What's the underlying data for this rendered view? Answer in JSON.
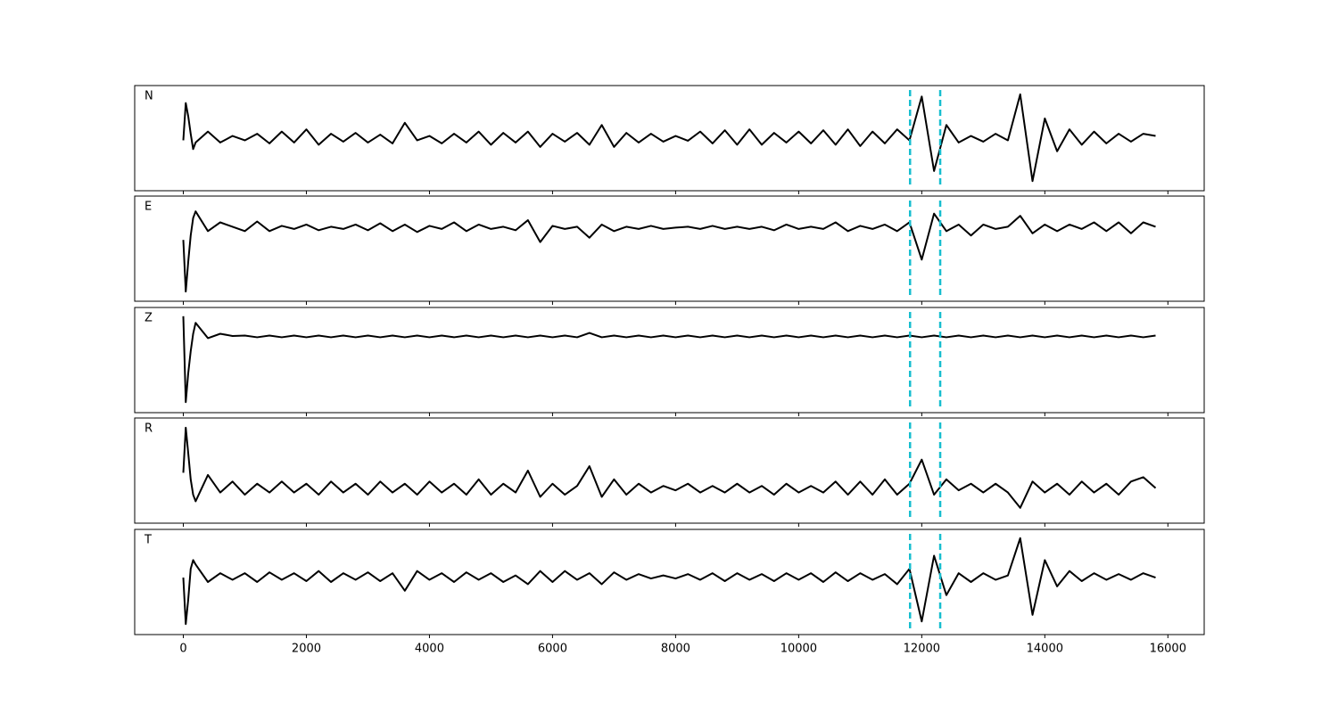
{
  "chart_data": {
    "type": "line",
    "color": "#000000",
    "x": [
      0,
      40,
      80,
      120,
      160,
      200,
      400,
      600,
      800,
      1000,
      1200,
      1400,
      1600,
      1800,
      2000,
      2200,
      2400,
      2600,
      2800,
      3000,
      3200,
      3400,
      3600,
      3800,
      4000,
      4200,
      4400,
      4600,
      4800,
      5000,
      5200,
      5400,
      5600,
      5800,
      6000,
      6200,
      6400,
      6600,
      6800,
      7000,
      7200,
      7400,
      7600,
      7800,
      8000,
      8200,
      8400,
      8600,
      8800,
      9000,
      9200,
      9400,
      9600,
      9800,
      10000,
      10200,
      10400,
      10600,
      10800,
      11000,
      11200,
      11400,
      11600,
      11800,
      12000,
      12200,
      12400,
      12600,
      12800,
      13000,
      13200,
      13400,
      13600,
      13800,
      14000,
      14200,
      14400,
      14600,
      14800,
      15000,
      15200,
      15400,
      15600,
      15800
    ],
    "series": [
      {
        "name": "N",
        "ylim": [
          -1.2,
          1.2
        ],
        "values": [
          -0.05,
          0.8,
          0.5,
          0.1,
          -0.25,
          -0.1,
          0.15,
          -0.1,
          0.05,
          -0.05,
          0.1,
          -0.12,
          0.15,
          -0.1,
          0.2,
          -0.15,
          0.1,
          -0.08,
          0.12,
          -0.1,
          0.08,
          -0.12,
          0.35,
          -0.05,
          0.05,
          -0.12,
          0.1,
          -0.1,
          0.15,
          -0.15,
          0.12,
          -0.1,
          0.15,
          -0.2,
          0.1,
          -0.08,
          0.12,
          -0.15,
          0.3,
          -0.2,
          0.12,
          -0.1,
          0.1,
          -0.08,
          0.05,
          -0.06,
          0.15,
          -0.12,
          0.18,
          -0.15,
          0.2,
          -0.15,
          0.12,
          -0.1,
          0.15,
          -0.12,
          0.18,
          -0.15,
          0.2,
          -0.18,
          0.15,
          -0.12,
          0.2,
          -0.05,
          0.95,
          -0.75,
          0.3,
          -0.1,
          0.05,
          -0.08,
          0.1,
          -0.05,
          1.0,
          -0.98,
          0.45,
          -0.3,
          0.2,
          -0.15,
          0.15,
          -0.12,
          0.1,
          -0.08,
          0.1,
          0.05
        ]
      },
      {
        "name": "E",
        "ylim": [
          -1.2,
          1.2
        ],
        "values": [
          0.2,
          -0.98,
          -0.3,
          0.3,
          0.7,
          0.85,
          0.4,
          0.6,
          0.5,
          0.4,
          0.62,
          0.4,
          0.52,
          0.45,
          0.55,
          0.42,
          0.5,
          0.45,
          0.55,
          0.42,
          0.58,
          0.4,
          0.55,
          0.38,
          0.52,
          0.45,
          0.6,
          0.4,
          0.55,
          0.45,
          0.5,
          0.42,
          0.65,
          0.15,
          0.52,
          0.45,
          0.5,
          0.25,
          0.55,
          0.4,
          0.5,
          0.45,
          0.52,
          0.45,
          0.48,
          0.5,
          0.45,
          0.52,
          0.45,
          0.5,
          0.45,
          0.5,
          0.42,
          0.55,
          0.45,
          0.5,
          0.45,
          0.6,
          0.4,
          0.52,
          0.45,
          0.55,
          0.4,
          0.6,
          -0.25,
          0.8,
          0.4,
          0.55,
          0.3,
          0.55,
          0.45,
          0.5,
          0.75,
          0.35,
          0.55,
          0.4,
          0.55,
          0.45,
          0.6,
          0.4,
          0.6,
          0.35,
          0.6,
          0.5
        ]
      },
      {
        "name": "Z",
        "ylim": [
          -1.2,
          1.2
        ],
        "values": [
          1.0,
          -0.96,
          -0.3,
          0.2,
          0.6,
          0.85,
          0.5,
          0.6,
          0.55,
          0.56,
          0.52,
          0.56,
          0.52,
          0.56,
          0.52,
          0.56,
          0.52,
          0.56,
          0.52,
          0.56,
          0.52,
          0.56,
          0.52,
          0.56,
          0.52,
          0.56,
          0.52,
          0.56,
          0.52,
          0.56,
          0.52,
          0.56,
          0.52,
          0.56,
          0.52,
          0.56,
          0.52,
          0.62,
          0.52,
          0.56,
          0.52,
          0.56,
          0.52,
          0.56,
          0.52,
          0.56,
          0.52,
          0.56,
          0.52,
          0.56,
          0.52,
          0.56,
          0.52,
          0.56,
          0.52,
          0.56,
          0.52,
          0.56,
          0.52,
          0.56,
          0.52,
          0.56,
          0.52,
          0.56,
          0.52,
          0.56,
          0.52,
          0.56,
          0.52,
          0.56,
          0.52,
          0.56,
          0.52,
          0.56,
          0.52,
          0.56,
          0.52,
          0.56,
          0.52,
          0.56,
          0.52,
          0.56,
          0.52,
          0.56
        ]
      },
      {
        "name": "R",
        "ylim": [
          -1.2,
          1.2
        ],
        "values": [
          -0.05,
          0.98,
          0.4,
          -0.2,
          -0.55,
          -0.7,
          -0.1,
          -0.5,
          -0.25,
          -0.55,
          -0.3,
          -0.5,
          -0.25,
          -0.5,
          -0.3,
          -0.55,
          -0.25,
          -0.5,
          -0.3,
          -0.55,
          -0.25,
          -0.5,
          -0.3,
          -0.55,
          -0.25,
          -0.5,
          -0.3,
          -0.55,
          -0.2,
          -0.55,
          -0.3,
          -0.5,
          0.0,
          -0.6,
          -0.3,
          -0.55,
          -0.35,
          0.1,
          -0.6,
          -0.2,
          -0.55,
          -0.3,
          -0.5,
          -0.35,
          -0.45,
          -0.3,
          -0.5,
          -0.35,
          -0.5,
          -0.3,
          -0.5,
          -0.35,
          -0.55,
          -0.3,
          -0.5,
          -0.35,
          -0.5,
          -0.25,
          -0.55,
          -0.25,
          -0.55,
          -0.2,
          -0.55,
          -0.3,
          0.25,
          -0.55,
          -0.2,
          -0.45,
          -0.3,
          -0.5,
          -0.3,
          -0.5,
          -0.85,
          -0.25,
          -0.5,
          -0.3,
          -0.55,
          -0.25,
          -0.5,
          -0.3,
          -0.55,
          -0.25,
          -0.15,
          -0.4
        ]
      },
      {
        "name": "T",
        "ylim": [
          -1.2,
          1.2
        ],
        "values": [
          0.1,
          -0.96,
          -0.4,
          0.3,
          0.5,
          0.4,
          0.0,
          0.2,
          0.05,
          0.2,
          0.0,
          0.22,
          0.05,
          0.2,
          0.02,
          0.25,
          0.0,
          0.2,
          0.05,
          0.22,
          0.02,
          0.2,
          -0.2,
          0.25,
          0.05,
          0.2,
          0.0,
          0.22,
          0.05,
          0.2,
          0.0,
          0.15,
          -0.05,
          0.25,
          0.0,
          0.25,
          0.05,
          0.2,
          -0.05,
          0.22,
          0.05,
          0.18,
          0.08,
          0.15,
          0.08,
          0.18,
          0.05,
          0.2,
          0.02,
          0.2,
          0.05,
          0.18,
          0.02,
          0.2,
          0.05,
          0.2,
          0.0,
          0.22,
          0.02,
          0.2,
          0.05,
          0.18,
          -0.05,
          0.3,
          -0.9,
          0.6,
          -0.3,
          0.2,
          0.0,
          0.2,
          0.05,
          0.15,
          1.0,
          -0.75,
          0.5,
          -0.1,
          0.25,
          0.02,
          0.2,
          0.05,
          0.18,
          0.05,
          0.2,
          0.1
        ]
      }
    ],
    "xlim": [
      -790,
      16590
    ],
    "xticks": [
      0,
      2000,
      4000,
      6000,
      8000,
      10000,
      12000,
      14000,
      16000
    ],
    "vlines": [
      11810,
      12300
    ],
    "vline_color": "#17becf"
  }
}
